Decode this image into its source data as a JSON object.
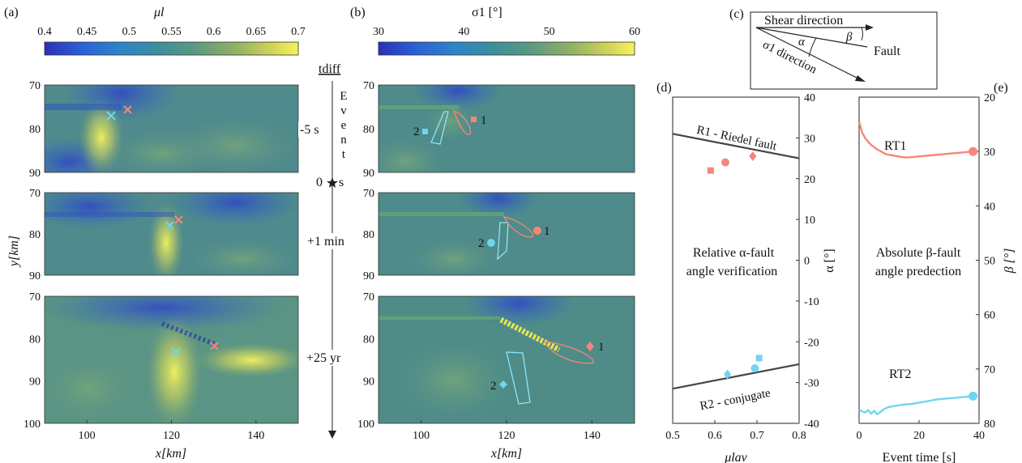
{
  "panels": {
    "a_label": "(a)",
    "b_label": "(b)",
    "c_label": "(c)",
    "d_label": "(d)",
    "e_label": "(e)"
  },
  "colorbar_a": {
    "label": "μl",
    "ticks": [
      "0.4",
      "0.45",
      "0.5",
      "0.55",
      "0.6",
      "0.65",
      "0.7"
    ]
  },
  "colorbar_b": {
    "label": "σ1 [°]",
    "ticks": [
      "30",
      "40",
      "50",
      "60"
    ]
  },
  "maps": {
    "ylabel": "y[km]",
    "xlabel": "x[km]",
    "yticks": [
      "70",
      "80",
      "90",
      "100"
    ],
    "xticks": [
      "100",
      "120",
      "140"
    ]
  },
  "timeline": {
    "title": "tdiff",
    "event_letters": [
      "E",
      "v",
      "e",
      "n",
      "t"
    ],
    "labels": [
      "-5 s",
      "0",
      "s",
      "+1 min",
      "+25 yr"
    ]
  },
  "schematic": {
    "shear": "Shear direction",
    "fault": "Fault",
    "sigma": "σ1 direction",
    "alpha": "α",
    "beta": "β"
  },
  "markers": {
    "one": "1",
    "two": "2"
  },
  "chart_data": [
    {
      "type": "scatter",
      "title": "",
      "xlabel": "μlav",
      "ylabel": "α [°]",
      "xlim": [
        0.5,
        0.8
      ],
      "ylim": [
        -40,
        40
      ],
      "xticks": [
        "0.5",
        "0.6",
        "0.7",
        "0.8"
      ],
      "yticks": [
        "40",
        "30",
        "20",
        "10",
        "0",
        "-10",
        "-20",
        "-30",
        "-40"
      ],
      "annotations": [
        "R1 - Riedel fault",
        "R2 - conjugate",
        "Relative α-fault",
        "angle verification"
      ],
      "lines": [
        {
          "name": "R1 - Riedel fault",
          "x": [
            0.5,
            0.8
          ],
          "y": [
            31,
            25
          ]
        },
        {
          "name": "R2 - conjugate",
          "x": [
            0.5,
            0.8
          ],
          "y": [
            -31.5,
            -25.5
          ]
        }
      ],
      "series": [
        {
          "color": "#F4877A",
          "marker": "square",
          "x": [
            0.59
          ],
          "y": [
            22
          ]
        },
        {
          "color": "#F4877A",
          "marker": "circle",
          "x": [
            0.625
          ],
          "y": [
            24
          ]
        },
        {
          "color": "#F4877A",
          "marker": "diamond",
          "x": [
            0.69
          ],
          "y": [
            25.5
          ]
        },
        {
          "color": "#6FD6EE",
          "marker": "square",
          "x": [
            0.705
          ],
          "y": [
            -24
          ]
        },
        {
          "color": "#6FD6EE",
          "marker": "circle",
          "x": [
            0.695
          ],
          "y": [
            -26.5
          ]
        },
        {
          "color": "#6FD6EE",
          "marker": "diamond",
          "x": [
            0.63
          ],
          "y": [
            -28
          ]
        }
      ]
    },
    {
      "type": "line",
      "title": "",
      "xlabel": "Event time [s]",
      "ylabel": "β [°]",
      "xlim": [
        0,
        40
      ],
      "ylim": [
        20,
        80
      ],
      "y_reversed": true,
      "xticks": [
        "0",
        "20",
        "40"
      ],
      "yticks": [
        "20",
        "30",
        "40",
        "50",
        "60",
        "70",
        "80"
      ],
      "annotations": [
        "Absolute β-fault",
        "angle predection"
      ],
      "series": [
        {
          "name": "RT1",
          "color": "#F4877A",
          "x": [
            0,
            1,
            2,
            3,
            4,
            5,
            6,
            7,
            8,
            9,
            10,
            12,
            14,
            16,
            18,
            20,
            22,
            24,
            26,
            28,
            30,
            32,
            34,
            36,
            38
          ],
          "y": [
            24.5,
            26.5,
            27.5,
            28.2,
            28.8,
            29.2,
            29.6,
            29.9,
            30.2,
            30.5,
            30.6,
            30.8,
            31.0,
            31.1,
            31.0,
            30.9,
            30.8,
            30.7,
            30.6,
            30.5,
            30.4,
            30.3,
            30.2,
            30.1,
            30.0
          ]
        },
        {
          "name": "RT2",
          "color": "#6FD6EE",
          "x": [
            0,
            1,
            2,
            3,
            4,
            5,
            6,
            7,
            8,
            9,
            10,
            12,
            14,
            16,
            18,
            20,
            22,
            24,
            26,
            28,
            30,
            32,
            34,
            36,
            38
          ],
          "y": [
            77.5,
            77.8,
            78.0,
            77.6,
            78.2,
            77.7,
            78.3,
            78.0,
            77.5,
            77.2,
            77.0,
            76.8,
            76.6,
            76.5,
            76.4,
            76.2,
            76.0,
            75.8,
            75.6,
            75.5,
            75.4,
            75.3,
            75.2,
            75.1,
            75.0
          ]
        }
      ]
    }
  ]
}
